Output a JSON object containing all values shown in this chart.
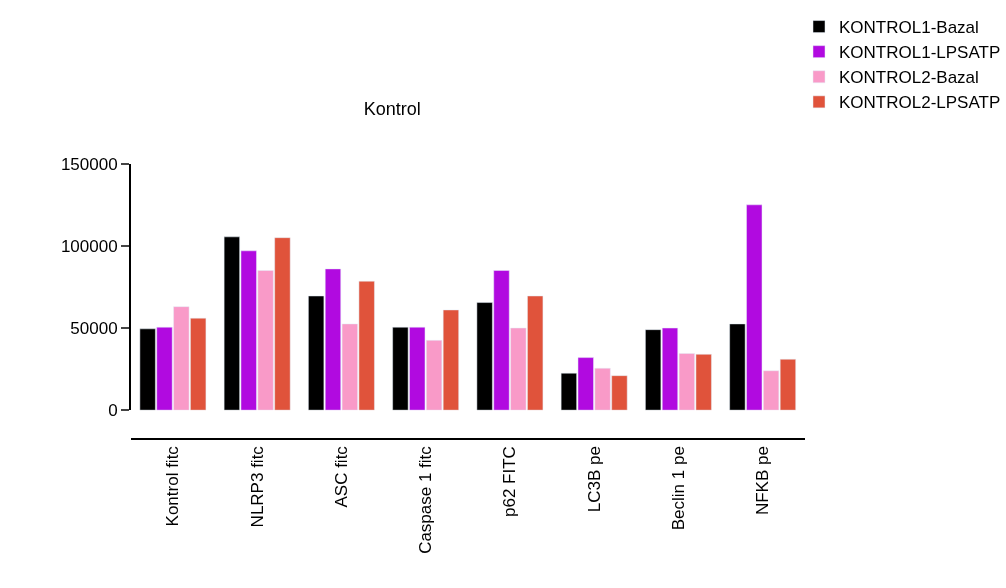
{
  "chart_data": {
    "type": "bar",
    "title": "Kontrol",
    "categories": [
      "Kontrol fitc",
      "NLRP3 fitc",
      "ASC fitc",
      "Caspase 1 fitc",
      "p62 FITC",
      "LC3B pe",
      "Beclin 1 pe",
      "NFKB pe"
    ],
    "series": [
      {
        "name": "KONTROL1-Bazal",
        "color": "#000000",
        "values": [
          49500,
          105500,
          69500,
          50500,
          65500,
          22500,
          49000,
          52500
        ]
      },
      {
        "name": "KONTROL1-LPSATP",
        "color": "#b10ae0",
        "values": [
          50500,
          97000,
          86000,
          50500,
          85000,
          32000,
          50000,
          125000
        ]
      },
      {
        "name": "KONTROL2-Bazal",
        "color": "#f99ac8",
        "values": [
          63000,
          85000,
          52500,
          42500,
          50000,
          25500,
          34500,
          24000
        ]
      },
      {
        "name": "KONTROL2-LPSATP",
        "color": "#e0533b",
        "values": [
          56000,
          105000,
          78500,
          61000,
          69500,
          21000,
          34000,
          31000
        ]
      }
    ],
    "ylim": [
      0,
      150000
    ],
    "yticks": [
      0,
      50000,
      100000,
      150000
    ],
    "legend": "top right"
  }
}
